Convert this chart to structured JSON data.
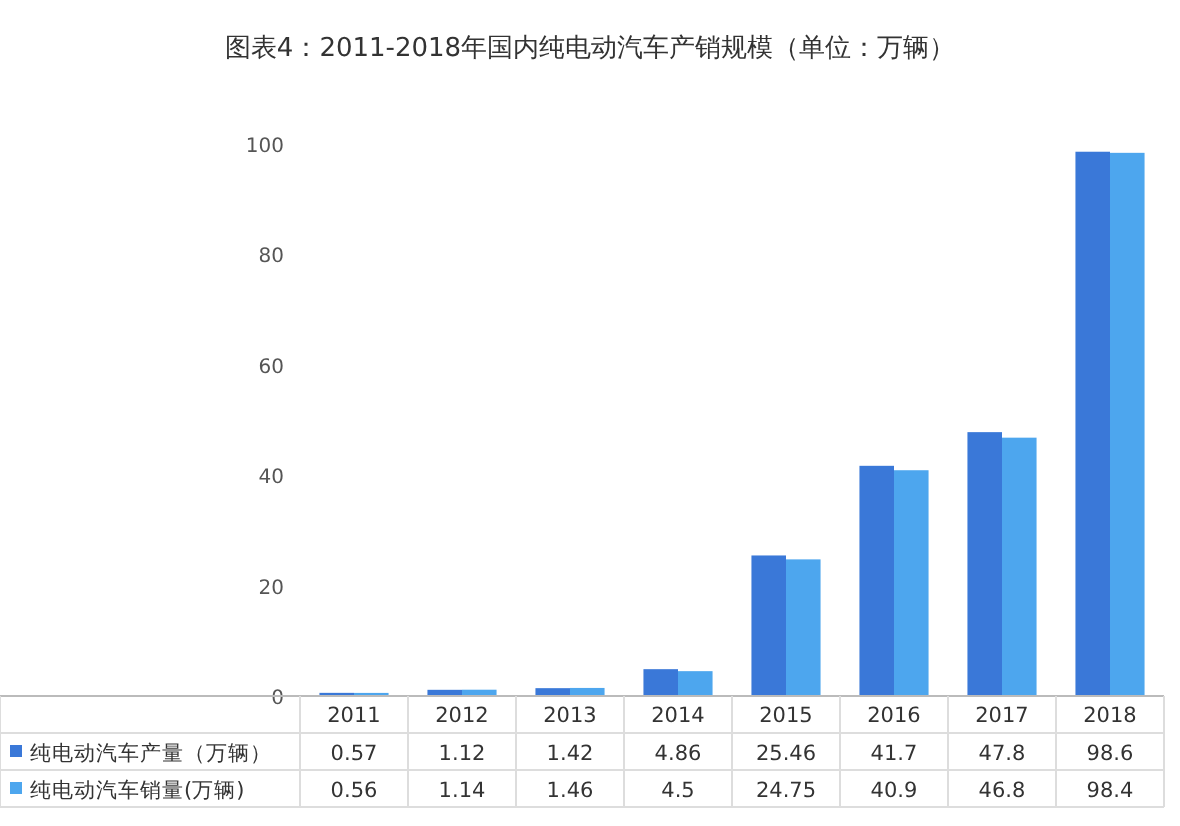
{
  "chart_data": {
    "type": "bar",
    "title": "图表4：2011-2018年国内纯电动汽车产销规模（单位：万辆）",
    "categories": [
      "2011",
      "2012",
      "2013",
      "2014",
      "2015",
      "2016",
      "2017",
      "2018"
    ],
    "series": [
      {
        "name": "纯电动汽车产量（万辆）",
        "color": "#3a78d8",
        "values": [
          0.57,
          1.12,
          1.42,
          4.86,
          25.46,
          41.7,
          47.8,
          98.6
        ]
      },
      {
        "name": "纯电动汽车销量(万辆)",
        "color": "#4da6ee",
        "values": [
          0.56,
          1.14,
          1.46,
          4.5,
          24.75,
          40.9,
          46.8,
          98.4
        ]
      }
    ],
    "ylim": [
      0,
      100
    ],
    "yticks": [
      0,
      20,
      40,
      60,
      80,
      100
    ],
    "data_labels": true,
    "legend": "bottom",
    "grid": false
  }
}
